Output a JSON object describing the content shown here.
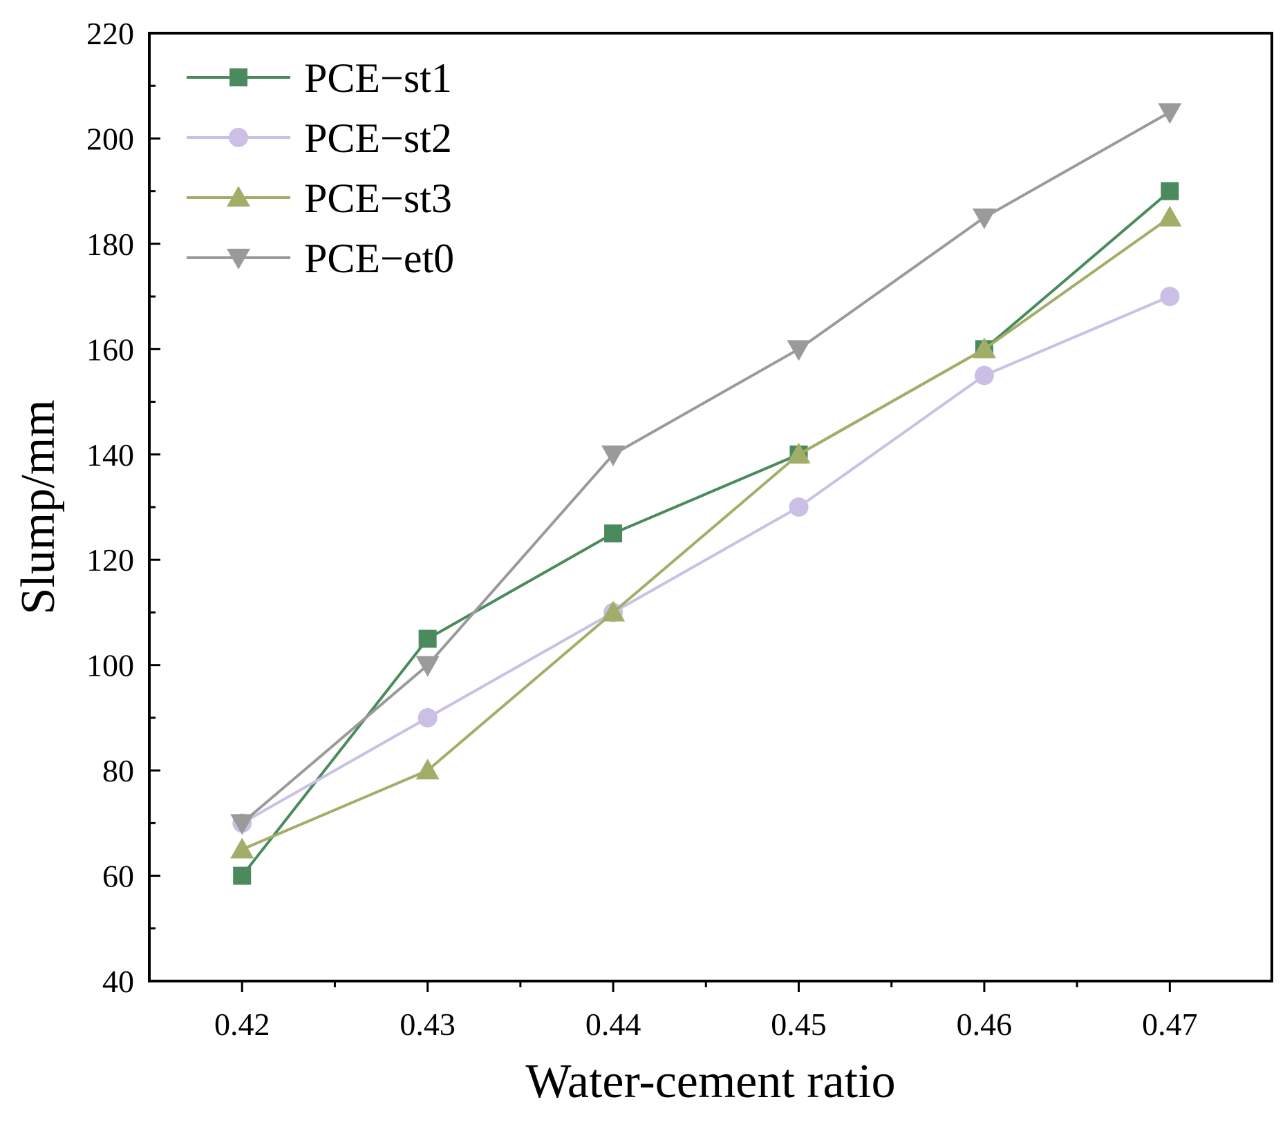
{
  "chart_data": {
    "type": "line",
    "xlabel": "Water-cement ratio",
    "ylabel": "Slump/mm",
    "x": [
      0.42,
      0.43,
      0.44,
      0.45,
      0.46,
      0.47
    ],
    "x_tick_labels": [
      "0.42",
      "0.43",
      "0.44",
      "0.45",
      "0.46",
      "0.47"
    ],
    "xlim": [
      0.415,
      0.4755
    ],
    "ylim": [
      40,
      220
    ],
    "y_ticks": [
      40,
      60,
      80,
      100,
      120,
      140,
      160,
      180,
      200,
      220
    ],
    "y_tick_labels": [
      "40",
      "60",
      "80",
      "100",
      "120",
      "140",
      "160",
      "180",
      "200",
      "220"
    ],
    "grid": false,
    "legend_position": "top-left",
    "series": [
      {
        "name": "PCE−st1",
        "marker": "square",
        "color": "#4a8a5c",
        "values": [
          60,
          105,
          125,
          140,
          160,
          190
        ]
      },
      {
        "name": "PCE−st2",
        "marker": "circle",
        "color": "#cbbfe6",
        "values": [
          70,
          90,
          110,
          130,
          155,
          170
        ]
      },
      {
        "name": "PCE−st3",
        "marker": "triangle-up",
        "color": "#a2ae67",
        "values": [
          65,
          80,
          110,
          140,
          160,
          185
        ]
      },
      {
        "name": "PCE−et0",
        "marker": "triangle-down",
        "color": "#9a9a9a",
        "values": [
          70,
          100,
          140,
          160,
          185,
          205
        ]
      }
    ]
  }
}
